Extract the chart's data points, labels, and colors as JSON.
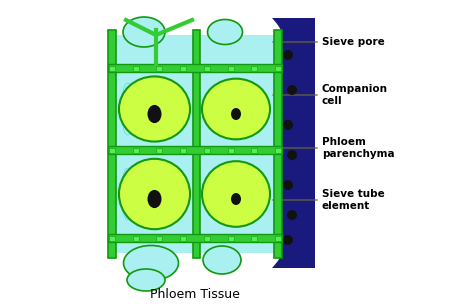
{
  "title": "Phloem Tissue",
  "labels": {
    "sieve_pore": "Sieve pore",
    "companion_cell": "Companion\ncell",
    "phloem_parenchyma": "Phloem\nparenchyma",
    "sieve_tube": "Sieve tube\nelement"
  },
  "colors": {
    "background": "#ffffff",
    "outer_wall": "#33cc33",
    "sieve_tube_fill": "#ccff44",
    "cyan_fill": "#aaf0f0",
    "cyan_texture": "#55dddd",
    "dark_blue": "#1a1a7e",
    "nucleus": "#111111",
    "wall_dark": "#119911",
    "label_line": "#666633",
    "text": "#000000",
    "sieve_plate_sq": "#55ee55",
    "companion_fill": "#ccff44"
  }
}
